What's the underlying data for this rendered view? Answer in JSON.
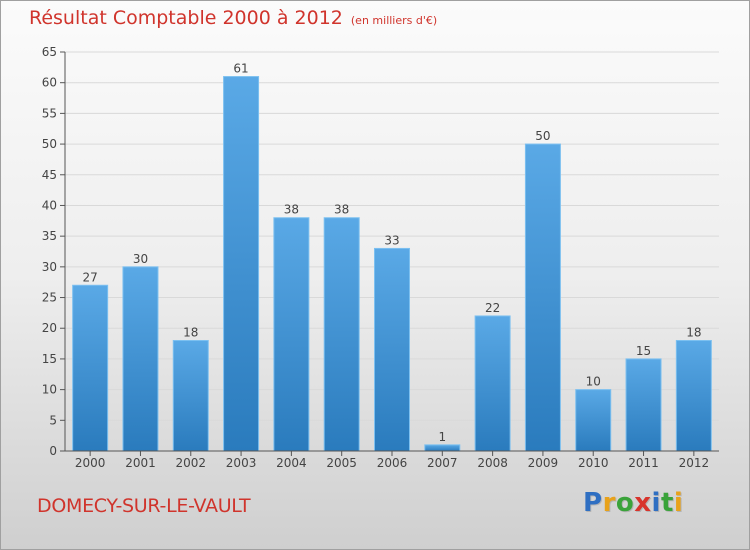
{
  "header": {
    "title": "Résultat Comptable 2000 à 2012",
    "unit": "(en milliers d'€)"
  },
  "footer": {
    "city": "DOMECY-SUR-LE-VAULT",
    "logo_letters": [
      "P",
      "r",
      "o",
      "x",
      "i",
      "t",
      "i"
    ],
    "logo_colors": [
      "#2f6fc2",
      "#e8a21b",
      "#3aa33a",
      "#d8342c",
      "#2f6fc2",
      "#3aa33a",
      "#e8a21b"
    ]
  },
  "colors": {
    "bar_top": "#5aa9e6",
    "bar_bottom": "#2a7bbd",
    "axis": "#555555",
    "grid": "#d9d9d9"
  },
  "chart_data": {
    "type": "bar",
    "categories": [
      "2000",
      "2001",
      "2002",
      "2003",
      "2004",
      "2005",
      "2006",
      "2007",
      "2008",
      "2009",
      "2010",
      "2011",
      "2012"
    ],
    "values": [
      27,
      30,
      18,
      61,
      38,
      38,
      33,
      1,
      22,
      50,
      10,
      15,
      18
    ],
    "ylim": [
      0,
      65
    ],
    "yticks": [
      0,
      5,
      10,
      15,
      20,
      25,
      30,
      35,
      40,
      45,
      50,
      55,
      60,
      65
    ],
    "grid": true
  }
}
